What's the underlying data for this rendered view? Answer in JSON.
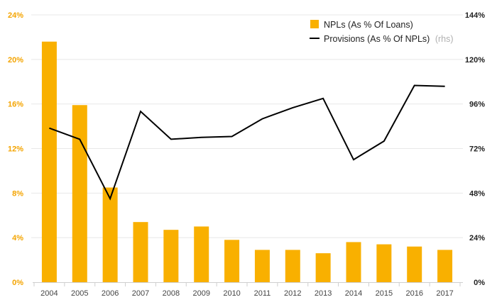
{
  "chart_data": {
    "type": "bar",
    "categories": [
      "2004",
      "2005",
      "2006",
      "2007",
      "2008",
      "2009",
      "2010",
      "2011",
      "2012",
      "2013",
      "2014",
      "2015",
      "2016",
      "2017"
    ],
    "series": [
      {
        "name": "NPLs (As % Of Loans)",
        "type": "bar",
        "axis": "left",
        "values": [
          21.6,
          15.9,
          8.5,
          5.4,
          4.7,
          5.0,
          3.8,
          2.9,
          2.9,
          2.6,
          3.6,
          3.4,
          3.2,
          2.9
        ]
      },
      {
        "name": "Provisions (As % Of NPLs)",
        "type": "line",
        "axis": "right",
        "values": [
          83,
          77,
          45,
          92,
          77,
          78,
          78.5,
          88,
          94,
          99,
          66,
          76,
          106,
          105.5
        ]
      }
    ],
    "left_axis": {
      "ticks": [
        "0%",
        "4%",
        "8%",
        "12%",
        "16%",
        "20%",
        "24%"
      ],
      "range": [
        0,
        24
      ]
    },
    "right_axis": {
      "ticks": [
        "0%",
        "24%",
        "48%",
        "72%",
        "96%",
        "120%",
        "144%"
      ],
      "range": [
        0,
        144
      ]
    },
    "legend": {
      "items": [
        {
          "label": "NPLs (As % Of Loans)",
          "note": ""
        },
        {
          "label": "Provisions (As % Of NPLs)",
          "note": "(rhs)"
        }
      ],
      "placement": "top-right"
    },
    "colors": {
      "bar": "#f9b000",
      "line": "#000000",
      "grid": "#e8e8e8",
      "left_tick": "#f4a400"
    }
  }
}
